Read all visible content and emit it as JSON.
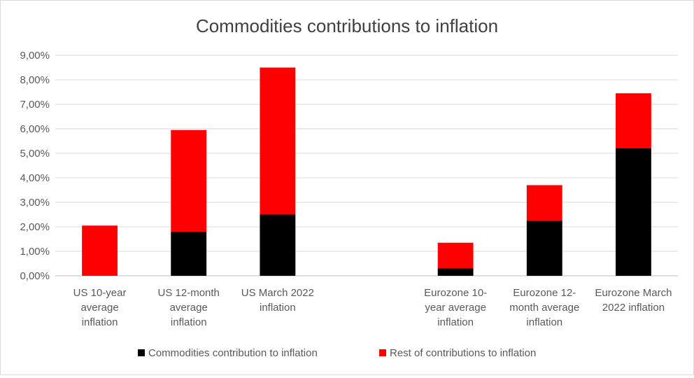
{
  "chart_data": {
    "type": "bar",
    "stacked": true,
    "title": "Commodities contributions to inflation",
    "categories": [
      [
        "US 10-year",
        "average",
        "inflation"
      ],
      [
        "US 12-month",
        "average",
        "inflation"
      ],
      [
        "US March 2022",
        "inflation"
      ],
      [],
      [
        "Eurozone 10-",
        "year average",
        "inflation"
      ],
      [
        "Eurozone 12-",
        "month average",
        "inflation"
      ],
      [
        "Eurozone March",
        "2022 inflation"
      ]
    ],
    "series": [
      {
        "name": "Commodities contribution to inflation",
        "color": "#000000",
        "values": [
          0.0,
          1.8,
          2.5,
          null,
          0.3,
          2.25,
          5.2
        ]
      },
      {
        "name": "Rest of contributions to inflation",
        "color": "#ff0000",
        "values": [
          2.05,
          4.15,
          6.0,
          null,
          1.05,
          1.45,
          2.25
        ]
      }
    ],
    "ylim": [
      0,
      9
    ],
    "yticks": [
      "0,00%",
      "1,00%",
      "2,00%",
      "3,00%",
      "4,00%",
      "5,00%",
      "6,00%",
      "7,00%",
      "8,00%",
      "9,00%"
    ],
    "grid": true,
    "legend": "bottom"
  }
}
